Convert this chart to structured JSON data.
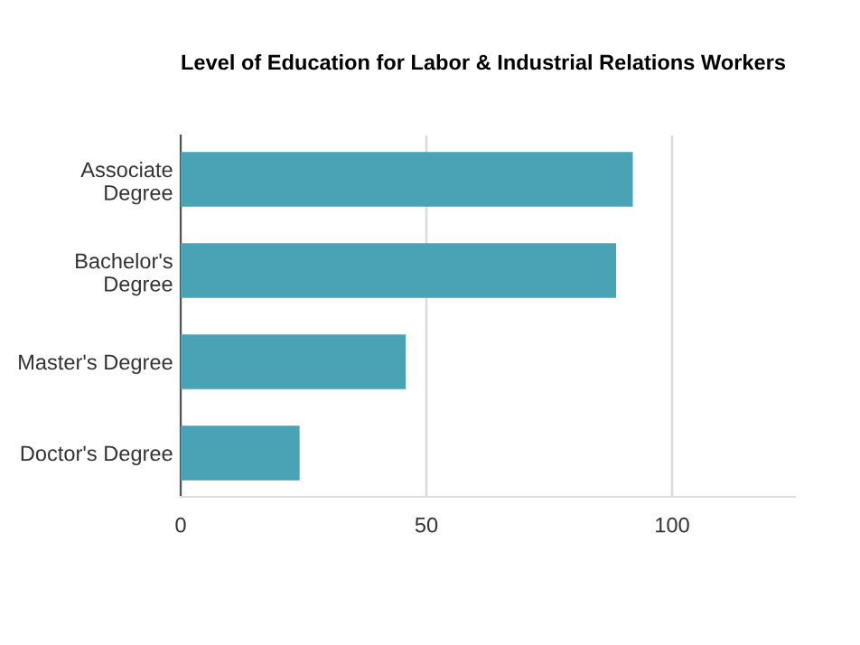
{
  "chart_data": {
    "type": "bar",
    "orientation": "horizontal",
    "title": "Level of Education for Labor & Industrial Relations Workers",
    "categories": [
      "Associate\nDegree",
      "Bachelor's\nDegree",
      "Master's Degree",
      "Doctor's Degree"
    ],
    "values": [
      92,
      88.6,
      45.8,
      24.2
    ],
    "color": "#4aa3b5",
    "xlim": [
      0,
      125
    ],
    "xticks": [
      0,
      50,
      100
    ],
    "grid": "x"
  }
}
